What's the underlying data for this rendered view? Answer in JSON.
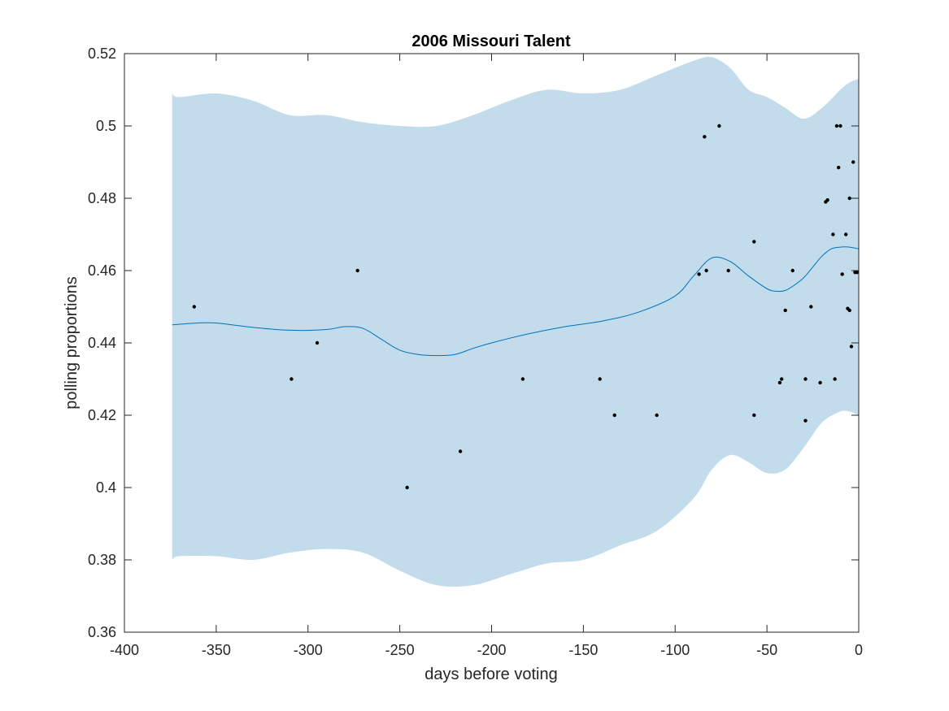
{
  "chart_data": {
    "type": "line",
    "title": "2006 Missouri Talent",
    "xlabel": "days before voting",
    "ylabel": "polling proportions",
    "xlim": [
      -400,
      0
    ],
    "ylim": [
      0.36,
      0.52
    ],
    "xticks": [
      -400,
      -350,
      -300,
      -250,
      -200,
      -150,
      -100,
      -50,
      0
    ],
    "xtick_labels": [
      "-400",
      "-350",
      "-300",
      "-250",
      "-200",
      "-150",
      "-100",
      "-50",
      "0"
    ],
    "yticks": [
      0.36,
      0.38,
      0.4,
      0.42,
      0.44,
      0.46,
      0.48,
      0.5,
      0.52
    ],
    "ytick_labels": [
      "0.36",
      "0.38",
      "0.4",
      "0.42",
      "0.44",
      "0.46",
      "0.48",
      "0.5",
      "0.52"
    ],
    "grid": false,
    "colors": {
      "band": "#c2dceb",
      "line": "#0072bd",
      "points": "#000000",
      "axes": "#262626"
    },
    "band": {
      "x": [
        -374,
        -370,
        -350,
        -330,
        -310,
        -290,
        -270,
        -250,
        -230,
        -210,
        -190,
        -170,
        -150,
        -130,
        -110,
        -90,
        -80,
        -70,
        -60,
        -50,
        -40,
        -30,
        -20,
        -10,
        -5,
        0
      ],
      "upper": [
        0.509,
        0.508,
        0.509,
        0.507,
        0.503,
        0.503,
        0.501,
        0.5,
        0.5,
        0.503,
        0.507,
        0.51,
        0.509,
        0.51,
        0.514,
        0.518,
        0.519,
        0.516,
        0.51,
        0.508,
        0.505,
        0.502,
        0.505,
        0.51,
        0.512,
        0.513
      ],
      "lower": [
        0.38,
        0.381,
        0.381,
        0.38,
        0.382,
        0.383,
        0.382,
        0.377,
        0.373,
        0.373,
        0.376,
        0.379,
        0.38,
        0.384,
        0.388,
        0.397,
        0.405,
        0.409,
        0.407,
        0.404,
        0.405,
        0.411,
        0.418,
        0.421,
        0.421,
        0.42
      ]
    },
    "series": [
      {
        "type": "line",
        "x": [
          -374,
          -360,
          -350,
          -330,
          -310,
          -290,
          -280,
          -270,
          -260,
          -250,
          -240,
          -230,
          -220,
          -210,
          -200,
          -180,
          -160,
          -140,
          -120,
          -100,
          -90,
          -80,
          -70,
          -60,
          -50,
          -45,
          -40,
          -35,
          -30,
          -25,
          -20,
          -15,
          -10,
          -5,
          0
        ],
        "values": [
          0.445,
          0.4455,
          0.4455,
          0.4443,
          0.4435,
          0.4437,
          0.4445,
          0.444,
          0.441,
          0.438,
          0.4368,
          0.4365,
          0.4368,
          0.4385,
          0.44,
          0.4425,
          0.4445,
          0.446,
          0.4485,
          0.453,
          0.4585,
          0.4635,
          0.4625,
          0.4585,
          0.455,
          0.4543,
          0.4545,
          0.456,
          0.458,
          0.461,
          0.464,
          0.466,
          0.4665,
          0.4665,
          0.466
        ]
      },
      {
        "type": "scatter",
        "x": [
          -362,
          -309,
          -295,
          -273,
          -246,
          -217,
          -183,
          -141,
          -133,
          -110,
          -87,
          -84,
          -83,
          -76,
          -71,
          -57,
          -57,
          -43,
          -42,
          -40,
          -36,
          -29,
          -29,
          -26,
          -21,
          -18,
          -17,
          -14,
          -13,
          -12,
          -11,
          -10,
          -9,
          -7,
          -6,
          -5,
          -5,
          -4,
          -3,
          -2,
          -1
        ],
        "values": [
          0.45,
          0.43,
          0.44,
          0.46,
          0.4,
          0.41,
          0.43,
          0.43,
          0.42,
          0.42,
          0.459,
          0.497,
          0.46,
          0.5,
          0.46,
          0.468,
          0.42,
          0.429,
          0.43,
          0.449,
          0.46,
          0.43,
          0.4185,
          0.45,
          0.429,
          0.479,
          0.4795,
          0.47,
          0.43,
          0.5,
          0.4885,
          0.5,
          0.459,
          0.47,
          0.4495,
          0.449,
          0.48,
          0.439,
          0.49,
          0.4595,
          0.4595
        ]
      }
    ]
  }
}
